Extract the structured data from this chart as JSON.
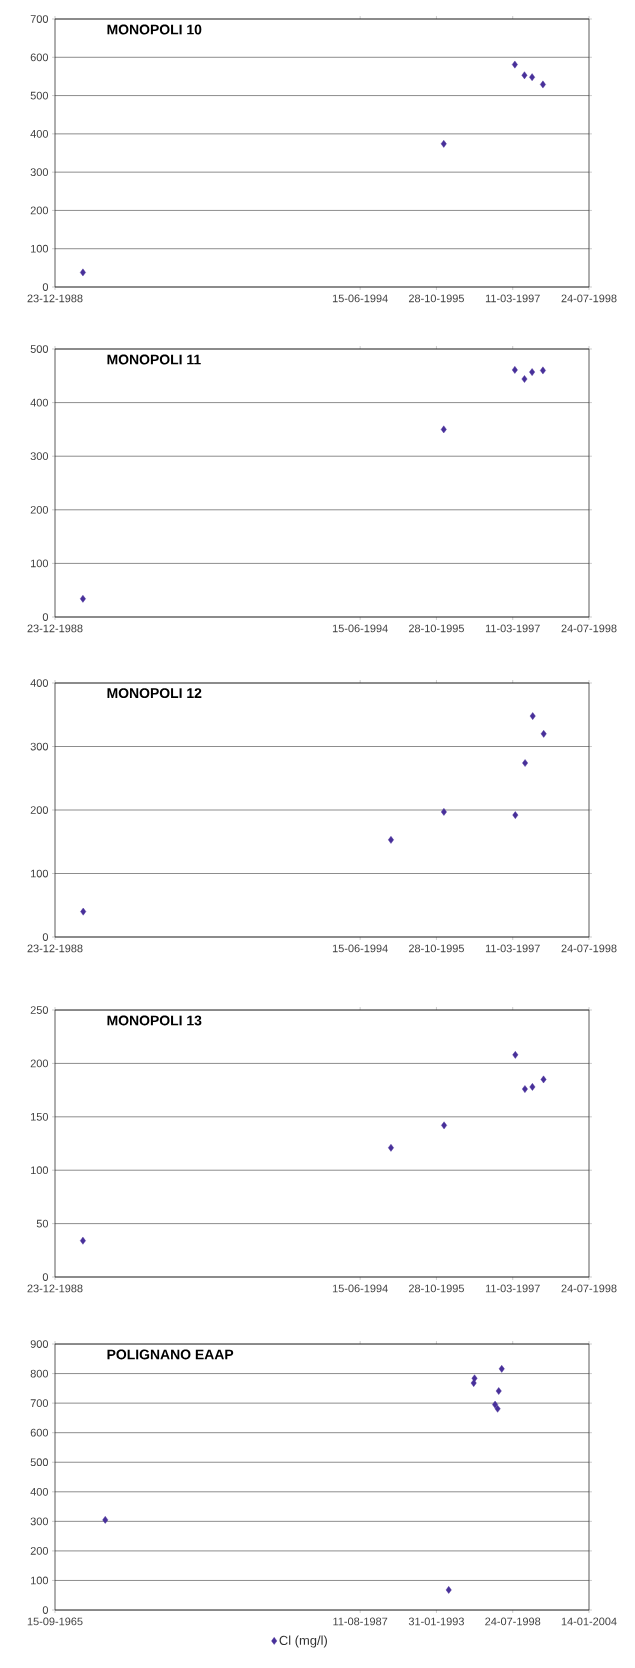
{
  "chart_data": [
    {
      "type": "scatter",
      "title": "MONOPOLI 10",
      "x": [
        "1989-06-24",
        "1995-12-15",
        "1997-03-25",
        "1997-05-27",
        "1997-07-16",
        "1997-09-25"
      ],
      "values": [
        38,
        374,
        581,
        553,
        548,
        529
      ],
      "color": "#48309a",
      "marker": "diamond",
      "xlim": [
        "1988-12-23",
        "1998-07-24"
      ],
      "xticks": [
        {
          "value": "1988-12-23",
          "label": "23-12-1988"
        },
        {
          "value": "1994-06-15",
          "label": "15-06-1994"
        },
        {
          "value": "1995-10-28",
          "label": "28-10-1995"
        },
        {
          "value": "1997-03-11",
          "label": "11-03-1997"
        },
        {
          "value": "1998-07-24",
          "label": "24-07-1998"
        }
      ],
      "ylim": [
        0,
        700
      ],
      "yticks": [
        0,
        100,
        200,
        300,
        400,
        500,
        600,
        700
      ],
      "grid": "y"
    },
    {
      "type": "scatter",
      "title": "MONOPOLI 11",
      "x": [
        "1989-06-24",
        "1995-12-15",
        "1997-03-25",
        "1997-05-27",
        "1997-07-16",
        "1997-09-25"
      ],
      "values": [
        34,
        350,
        461,
        444,
        457,
        460
      ],
      "color": "#48309a",
      "marker": "diamond",
      "xlim": [
        "1988-12-23",
        "1998-07-24"
      ],
      "xticks": [
        {
          "value": "1988-12-23",
          "label": "23-12-1988"
        },
        {
          "value": "1994-06-15",
          "label": "15-06-1994"
        },
        {
          "value": "1995-10-28",
          "label": "28-10-1995"
        },
        {
          "value": "1997-03-11",
          "label": "11-03-1997"
        },
        {
          "value": "1998-07-24",
          "label": "24-07-1998"
        }
      ],
      "ylim": [
        0,
        500
      ],
      "yticks": [
        0,
        100,
        200,
        300,
        400,
        500
      ],
      "grid": "y"
    },
    {
      "type": "scatter",
      "title": "MONOPOLI 12",
      "x": [
        "1989-06-26",
        "1995-01-03",
        "1995-12-16",
        "1997-03-28",
        "1997-05-31",
        "1997-07-20",
        "1997-09-30"
      ],
      "values": [
        40,
        153,
        197,
        192,
        274,
        348,
        320
      ],
      "color": "#48309a",
      "marker": "diamond",
      "xlim": [
        "1988-12-23",
        "1998-07-24"
      ],
      "xticks": [
        {
          "value": "1988-12-23",
          "label": "23-12-1988"
        },
        {
          "value": "1994-06-15",
          "label": "15-06-1994"
        },
        {
          "value": "1995-10-28",
          "label": "28-10-1995"
        },
        {
          "value": "1997-03-11",
          "label": "11-03-1997"
        },
        {
          "value": "1998-07-24",
          "label": "24-07-1998"
        }
      ],
      "ylim": [
        0,
        400
      ],
      "yticks": [
        0,
        100,
        200,
        300,
        400
      ],
      "grid": "y"
    },
    {
      "type": "scatter",
      "title": "MONOPOLI 13",
      "x": [
        "1989-06-24",
        "1995-01-03",
        "1995-12-17",
        "1997-03-28",
        "1997-05-30",
        "1997-07-18",
        "1997-09-29"
      ],
      "values": [
        34,
        121,
        142,
        208,
        176,
        178,
        185
      ],
      "color": "#48309a",
      "marker": "diamond",
      "xlim": [
        "1988-12-23",
        "1998-07-24"
      ],
      "xticks": [
        {
          "value": "1988-12-23",
          "label": "23-12-1988"
        },
        {
          "value": "1994-06-15",
          "label": "15-06-1994"
        },
        {
          "value": "1995-10-28",
          "label": "28-10-1995"
        },
        {
          "value": "1997-03-11",
          "label": "11-03-1997"
        },
        {
          "value": "1998-07-24",
          "label": "24-07-1998"
        }
      ],
      "ylim": [
        0,
        250
      ],
      "yticks": [
        0,
        50,
        100,
        150,
        200,
        250
      ],
      "grid": "y"
    },
    {
      "type": "scatter",
      "title": "POLIGNANO EAAP",
      "x": [
        "1969-04-24",
        "1993-12-19",
        "1995-10-05",
        "1995-10-27",
        "1997-04-17",
        "1997-06-23",
        "1997-07-22",
        "1997-10-09"
      ],
      "series": [
        {
          "name": "Cl (mg/l)",
          "color": "#48309a",
          "values": [
            305,
            68,
            768,
            784,
            695,
            681,
            741,
            816
          ]
        }
      ],
      "marker": "diamond",
      "legend": "bottom",
      "xlim": [
        "1965-09-15",
        "2004-01-14"
      ],
      "xticks": [
        {
          "value": "1965-09-15",
          "label": "15-09-1965"
        },
        {
          "value": "1987-08-11",
          "label": "11-08-1987"
        },
        {
          "value": "1993-01-31",
          "label": "31-01-1993"
        },
        {
          "value": "1998-07-24",
          "label": "24-07-1998"
        },
        {
          "value": "2004-01-14",
          "label": "14-01-2004"
        }
      ],
      "ylim": [
        0,
        900
      ],
      "yticks": [
        0,
        100,
        200,
        300,
        400,
        500,
        600,
        700,
        800,
        900
      ],
      "grid": "y"
    }
  ]
}
